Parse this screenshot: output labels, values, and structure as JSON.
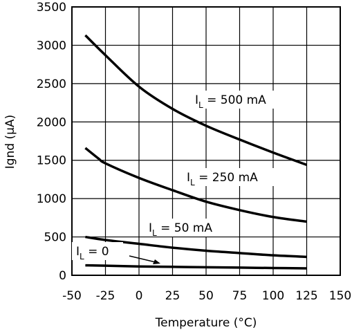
{
  "chart_data": {
    "type": "line",
    "xlabel": "Temperature (°C)",
    "ylabel": "Ignd (μA)",
    "xlim": [
      -50,
      150
    ],
    "ylim": [
      0,
      3500
    ],
    "x_ticks": [
      -50,
      -25,
      0,
      25,
      50,
      75,
      100,
      125,
      150
    ],
    "y_ticks": [
      0,
      500,
      1000,
      1500,
      2000,
      2500,
      3000,
      3500
    ],
    "x_tick_labels": [
      "-50",
      "-25",
      "0",
      "25",
      "50",
      "75",
      "100",
      "125",
      "150"
    ],
    "y_tick_labels": [
      "0",
      "500",
      "1000",
      "1500",
      "2000",
      "2500",
      "3000",
      "3500"
    ],
    "grid": true,
    "series": [
      {
        "name": "IL = 500 mA",
        "label_main": "I",
        "label_sub": "L",
        "label_rest": " = 500 mA",
        "x": [
          -40,
          -25,
          0,
          25,
          50,
          75,
          100,
          125
        ],
        "y": [
          3130,
          2870,
          2460,
          2170,
          1950,
          1770,
          1600,
          1440
        ]
      },
      {
        "name": "IL = 250 mA",
        "label_main": "I",
        "label_sub": "L",
        "label_rest": " = 250 mA",
        "x": [
          -40,
          -30,
          -25,
          0,
          25,
          50,
          75,
          100,
          125
        ],
        "y": [
          1660,
          1520,
          1460,
          1270,
          1110,
          960,
          850,
          760,
          700
        ]
      },
      {
        "name": "IL = 50 mA",
        "label_main": "I",
        "label_sub": "L",
        "label_rest": " = 50 mA",
        "x": [
          -40,
          -25,
          0,
          25,
          50,
          75,
          100,
          125
        ],
        "y": [
          500,
          460,
          410,
          360,
          320,
          290,
          260,
          240
        ]
      },
      {
        "name": "IL = 0",
        "label_main": "I",
        "label_sub": "L",
        "label_rest": " = 0",
        "x": [
          -40,
          -25,
          0,
          25,
          50,
          75,
          100,
          125
        ],
        "y": [
          130,
          125,
          115,
          110,
          105,
          100,
          95,
          90
        ]
      }
    ]
  }
}
